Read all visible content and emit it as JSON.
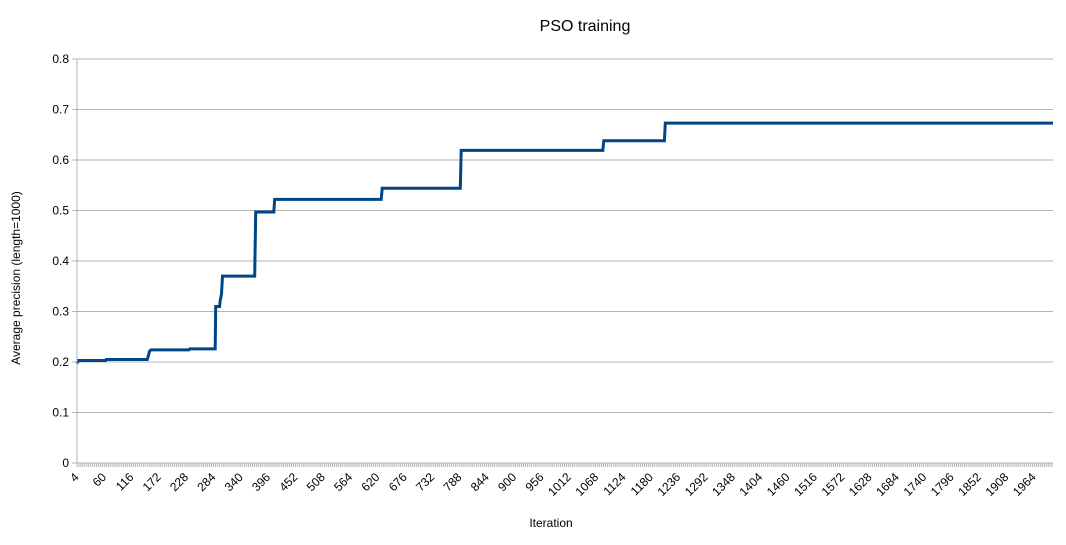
{
  "chart_data": {
    "type": "line",
    "title": "PSO training",
    "xlabel": "Iteration",
    "ylabel": "Average precision (length=1000)",
    "ylim": [
      0,
      0.8
    ],
    "yticks": [
      0,
      0.1,
      0.2,
      0.3,
      0.4,
      0.5,
      0.6,
      0.7,
      0.8
    ],
    "xlim": [
      1,
      2000
    ],
    "xtick_labels": [
      "4",
      "60",
      "116",
      "172",
      "228",
      "284",
      "340",
      "396",
      "452",
      "508",
      "564",
      "620",
      "676",
      "732",
      "788",
      "844",
      "900",
      "956",
      "1012",
      "1068",
      "1124",
      "1180",
      "1236",
      "1292",
      "1348",
      "1404",
      "1460",
      "1516",
      "1572",
      "1628",
      "1684",
      "1740",
      "1796",
      "1852",
      "1908",
      "1964"
    ],
    "grid": true,
    "legend": "none",
    "series_color": "#004586",
    "series": [
      {
        "points": [
          [
            1,
            0.197
          ],
          [
            4,
            0.203
          ],
          [
            60,
            0.203
          ],
          [
            61,
            0.205
          ],
          [
            145,
            0.205
          ],
          [
            150,
            0.222
          ],
          [
            153,
            0.224
          ],
          [
            230,
            0.224
          ],
          [
            232,
            0.226
          ],
          [
            284,
            0.226
          ],
          [
            285,
            0.31
          ],
          [
            293,
            0.31
          ],
          [
            294,
            0.32
          ],
          [
            297,
            0.335
          ],
          [
            299,
            0.37
          ],
          [
            365,
            0.37
          ],
          [
            367,
            0.497
          ],
          [
            404,
            0.497
          ],
          [
            406,
            0.522
          ],
          [
            624,
            0.522
          ],
          [
            626,
            0.544
          ],
          [
            786,
            0.544
          ],
          [
            788,
            0.619
          ],
          [
            1078,
            0.619
          ],
          [
            1080,
            0.638
          ],
          [
            1204,
            0.638
          ],
          [
            1206,
            0.673
          ],
          [
            2000,
            0.673
          ]
        ]
      }
    ]
  }
}
